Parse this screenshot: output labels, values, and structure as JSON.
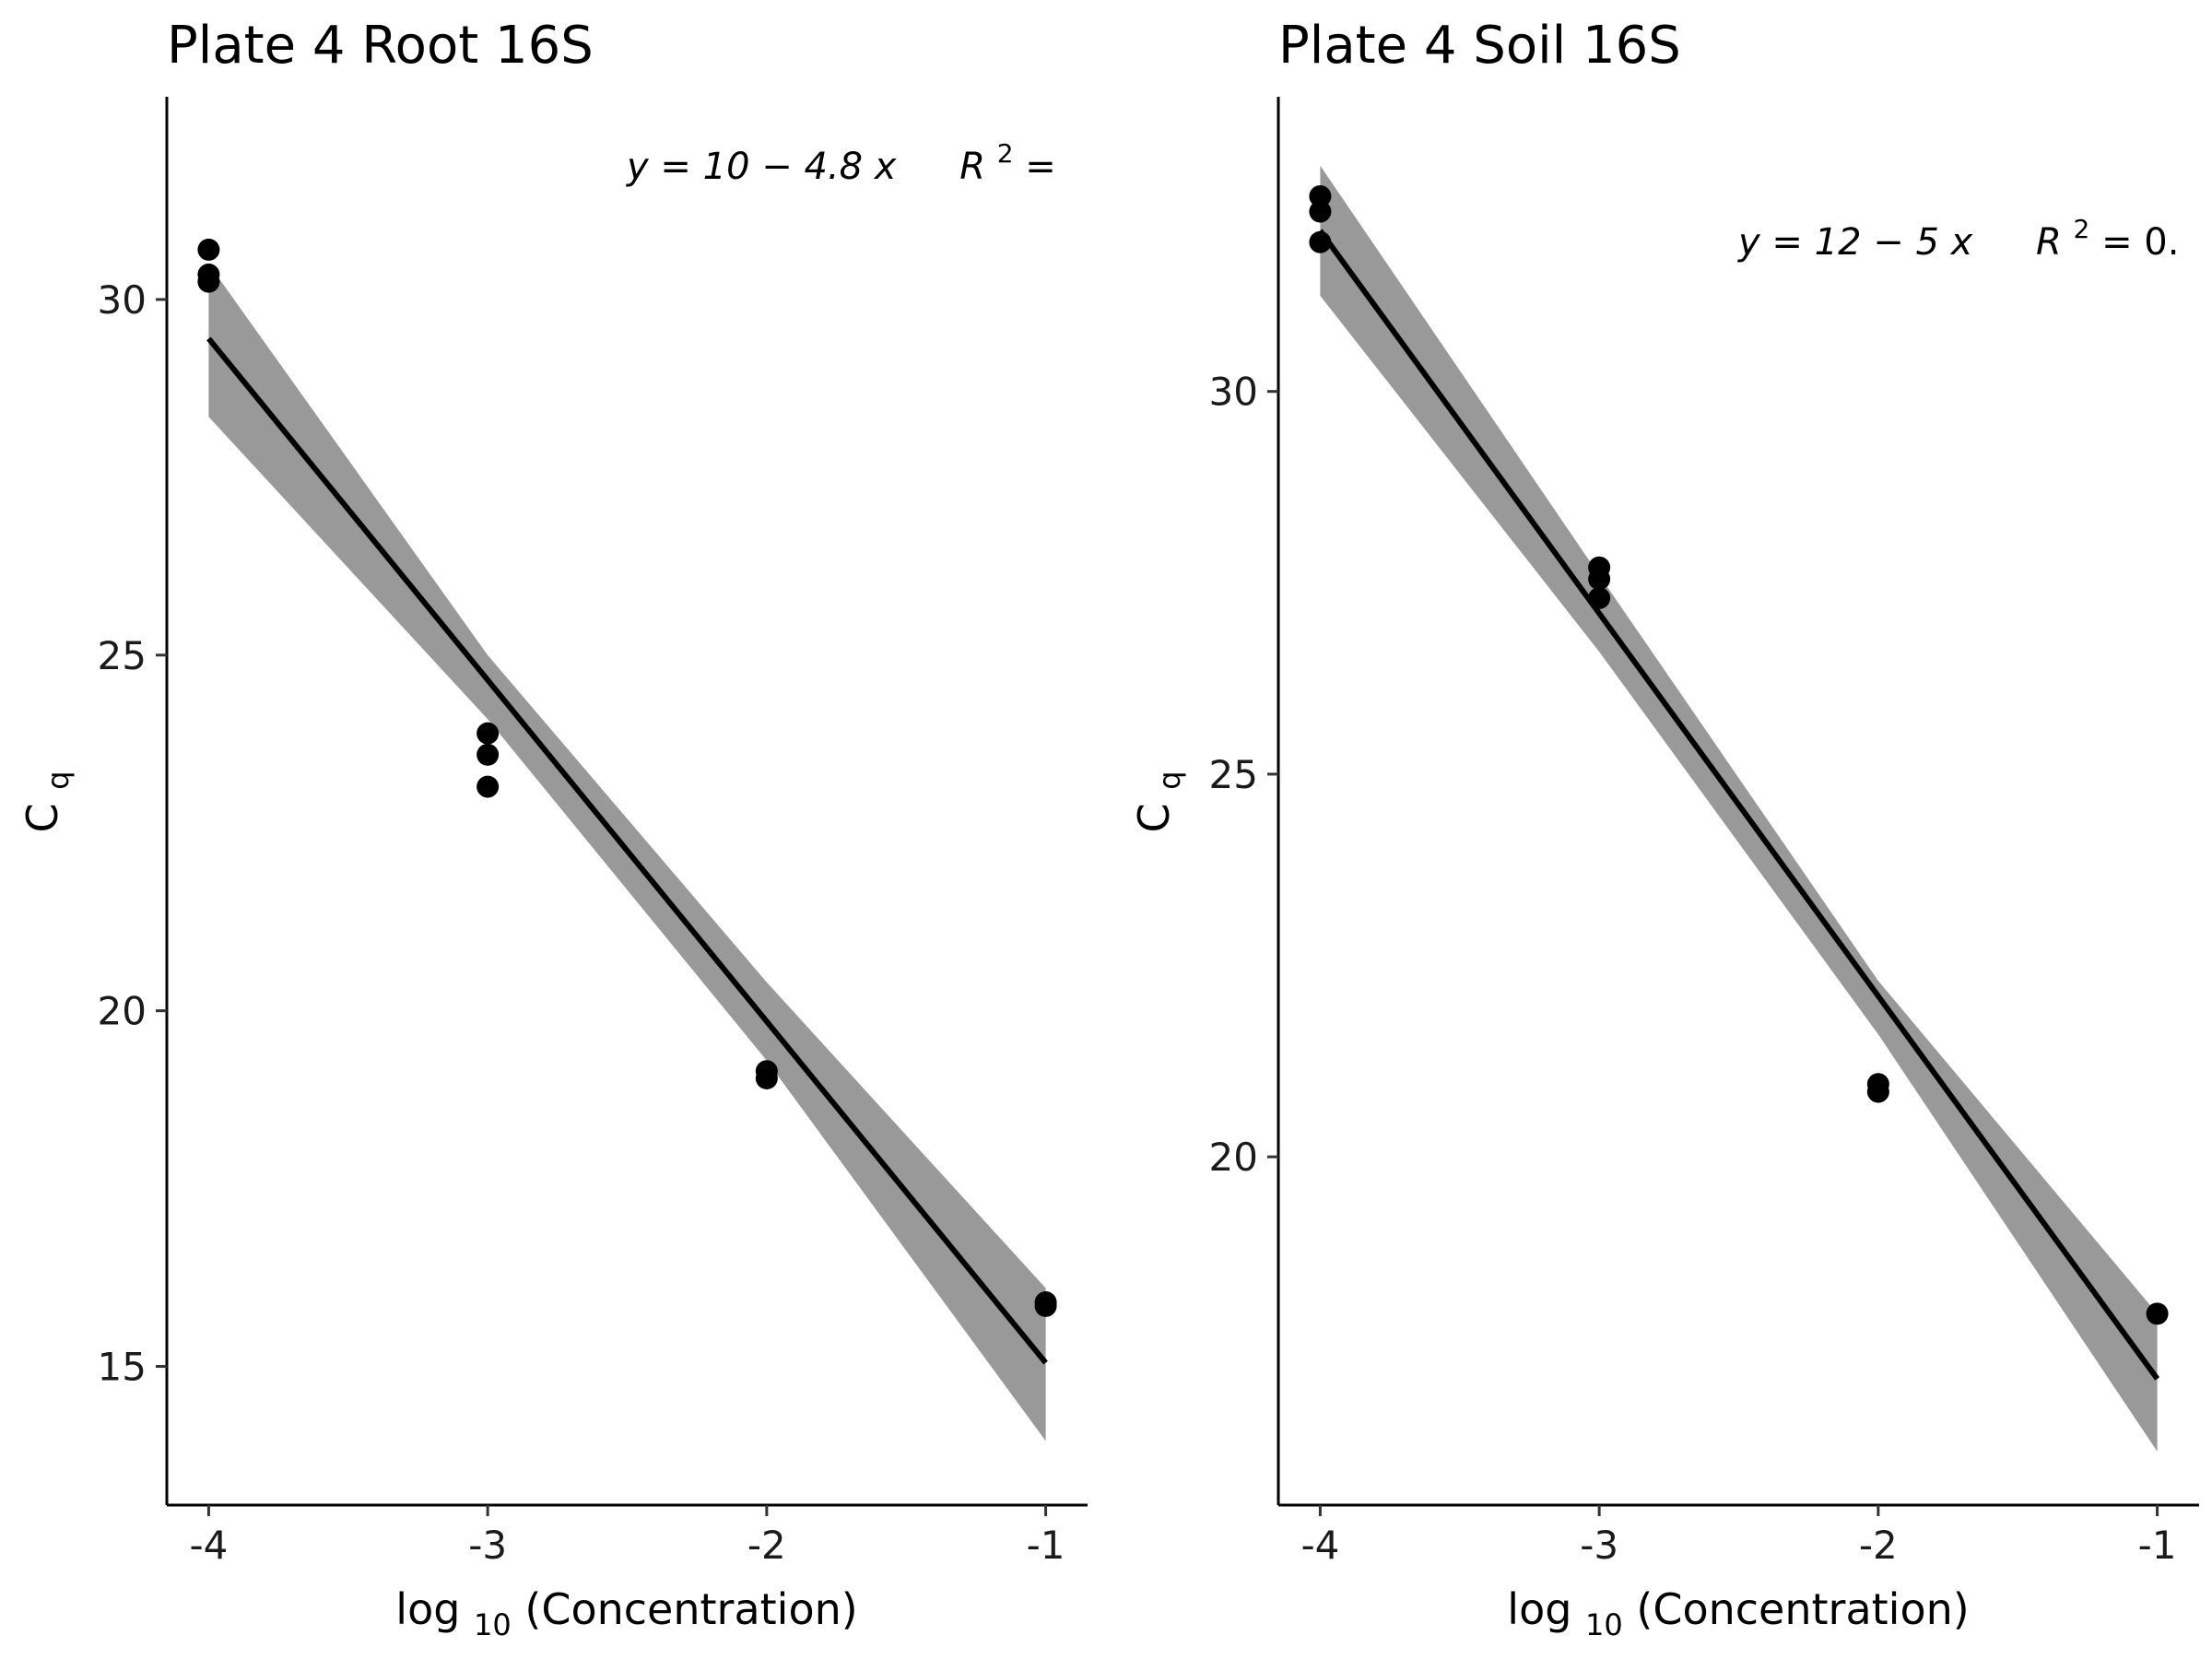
{
  "chart_data": [
    {
      "type": "scatter",
      "title": "Plate 4 Root 16S",
      "xlabel": "log10(Concentration)",
      "xlabel_main": "log",
      "xlabel_sub": "10",
      "xlabel_rest": "(Concentration)",
      "ylabel": "Cq",
      "ylabel_main": "C",
      "ylabel_sub": "q",
      "xlim": [
        -4.15,
        -0.85
      ],
      "ylim": [
        13.05,
        32.85
      ],
      "x_ticks": [
        -4,
        -3,
        -2,
        -1
      ],
      "x_tick_labels": [
        "-4",
        "-3",
        "-2",
        "-1"
      ],
      "y_ticks": [
        15,
        20,
        25,
        30
      ],
      "y_tick_labels": [
        "15",
        "20",
        "25",
        "30"
      ],
      "grid": false,
      "legend": "none",
      "equation_text": "y = 10 − 4.8 x",
      "r2_text": "R",
      "r2_sup": "2",
      "r2_rest": " =",
      "points": [
        {
          "x": -4,
          "y": 30.7
        },
        {
          "x": -4,
          "y": 30.35
        },
        {
          "x": -4,
          "y": 30.25
        },
        {
          "x": -3,
          "y": 23.9
        },
        {
          "x": -3,
          "y": 23.6
        },
        {
          "x": -3,
          "y": 23.15
        },
        {
          "x": -2,
          "y": 19.15
        },
        {
          "x": -2,
          "y": 19.05
        },
        {
          "x": -1,
          "y": 15.9
        },
        {
          "x": -1,
          "y": 15.85
        }
      ],
      "fit_line": {
        "x": [
          -4,
          -1
        ],
        "y": [
          29.45,
          15.05
        ]
      },
      "confidence_band": {
        "x": [
          -4,
          -3,
          -2,
          -1
        ],
        "upper": [
          30.5,
          25.0,
          20.4,
          16.1
        ],
        "lower": [
          28.35,
          24.1,
          19.3,
          13.95
        ]
      }
    },
    {
      "type": "scatter",
      "title": "Plate 4 Soil 16S",
      "xlabel": "log10(Concentration)",
      "xlabel_main": "log",
      "xlabel_sub": "10",
      "xlabel_rest": "(Concentration)",
      "ylabel": "Cq",
      "ylabel_main": "C",
      "ylabel_sub": "q",
      "xlim": [
        -4.15,
        -0.85
      ],
      "ylim": [
        15.45,
        33.85
      ],
      "x_ticks": [
        -4,
        -3,
        -2,
        -1
      ],
      "x_tick_labels": [
        "-4",
        "-3",
        "-2",
        "-1"
      ],
      "y_ticks": [
        20,
        25,
        30
      ],
      "y_tick_labels": [
        "20",
        "25",
        "30"
      ],
      "grid": false,
      "legend": "none",
      "equation_text": "y = 12 − 5 x",
      "r2_text": "R",
      "r2_sup": "2",
      "r2_rest": " = 0.",
      "points": [
        {
          "x": -4,
          "y": 32.55
        },
        {
          "x": -4,
          "y": 32.35
        },
        {
          "x": -4,
          "y": 31.95
        },
        {
          "x": -3,
          "y": 27.7
        },
        {
          "x": -3,
          "y": 27.55
        },
        {
          "x": -3,
          "y": 27.3
        },
        {
          "x": -2,
          "y": 20.95
        },
        {
          "x": -2,
          "y": 20.85
        },
        {
          "x": -1,
          "y": 17.95
        }
      ],
      "fit_line": {
        "x": [
          -4,
          -1
        ],
        "y": [
          32.1,
          17.1
        ]
      },
      "confidence_band": {
        "x": [
          -4,
          -3,
          -2,
          -1
        ],
        "upper": [
          32.95,
          27.6,
          22.3,
          17.95
        ],
        "lower": [
          31.25,
          26.6,
          21.6,
          16.15
        ]
      }
    }
  ]
}
